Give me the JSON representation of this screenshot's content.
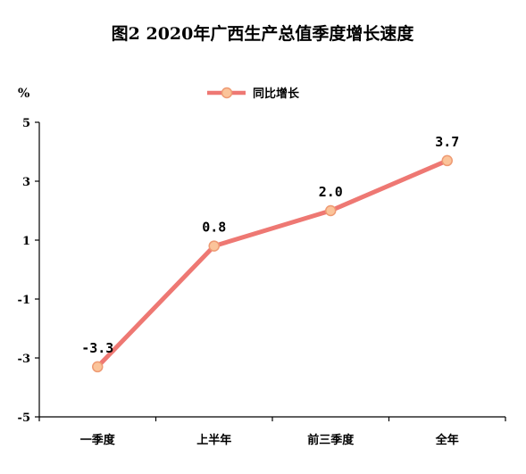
{
  "chart_data": {
    "type": "line",
    "title": "图2 2020年广西生产总值季度增长速度",
    "y_unit": "%",
    "categories": [
      "一季度",
      "上半年",
      "前三季度",
      "全年"
    ],
    "series": [
      {
        "name": "同比增长",
        "values": [
          -3.3,
          0.8,
          2.0,
          3.7
        ],
        "labels": [
          "-3.3",
          "0.8",
          "2.0",
          "3.7"
        ]
      }
    ],
    "ylim": [
      -5,
      5
    ],
    "y_ticks": [
      "5",
      "3",
      "1",
      "-1",
      "-3",
      "-5"
    ],
    "y_tick_values": [
      5,
      3,
      1,
      -1,
      -3,
      -5
    ],
    "legend_position": "top-center",
    "grid": false,
    "colors": {
      "line": "#ee7873",
      "marker_fill": "#fbc49a",
      "marker_stroke": "#ee9a73",
      "axis": "#000000"
    }
  }
}
